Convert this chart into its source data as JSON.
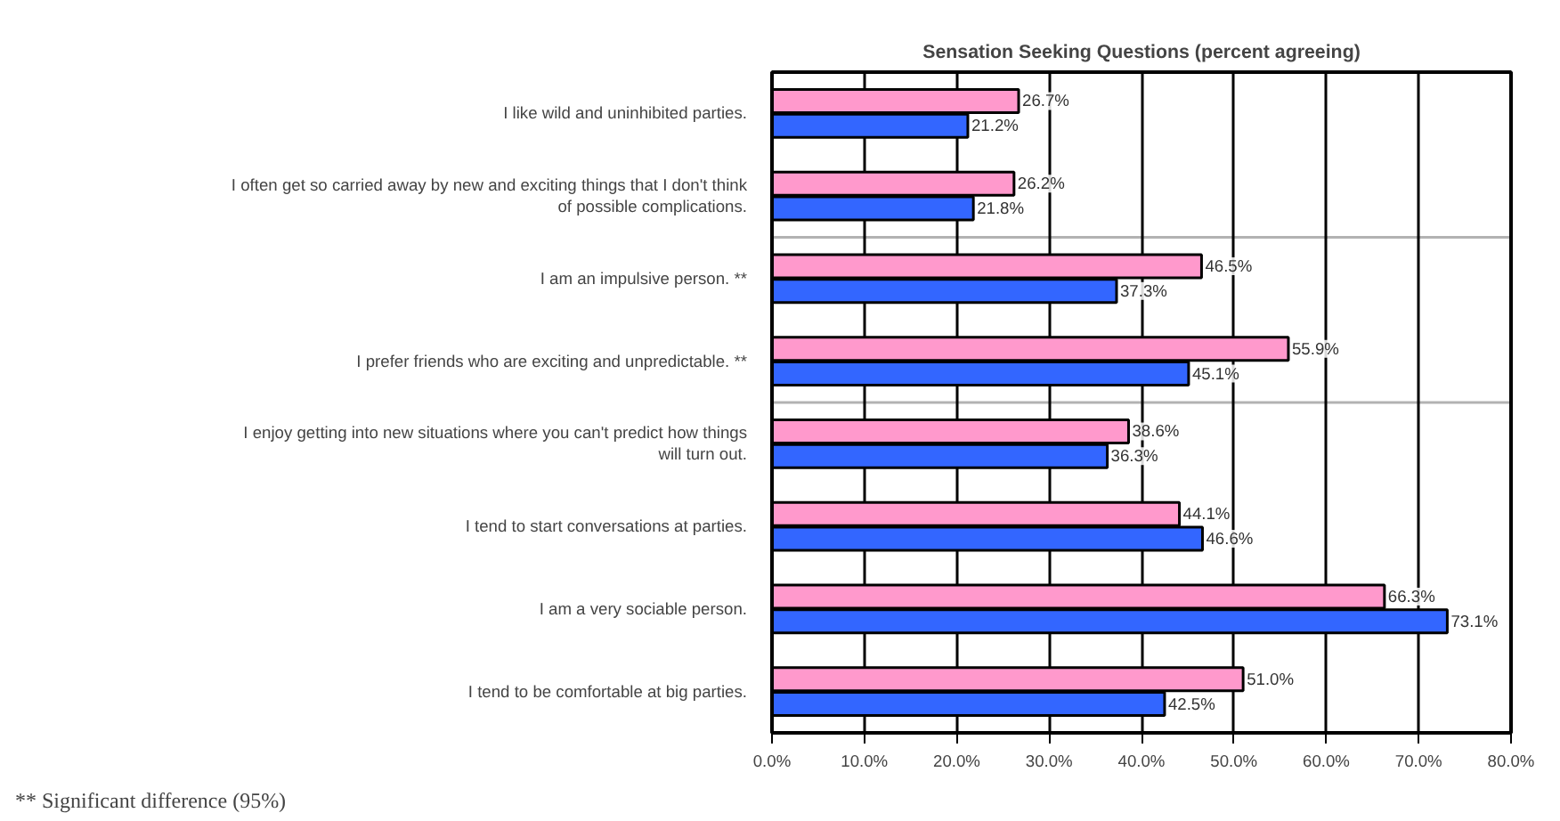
{
  "chart_data": {
    "type": "bar",
    "orientation": "horizontal",
    "title": "Sensation Seeking Questions (percent agreeing)",
    "categories": [
      "I like wild and uninhibited parties.",
      "I often get so carried away by new and exciting things that I don't think of possible complications.",
      "I am an impulsive person. **",
      "I prefer friends who are exciting and unpredictable. **",
      "I enjoy getting into new situations where you can't predict how things will turn out.",
      "I tend to start conversations at parties.",
      "I am a very sociable person.",
      "I tend to be comfortable at big parties."
    ],
    "series": [
      {
        "color": "#ff99cc",
        "values": [
          26.7,
          26.2,
          46.5,
          55.9,
          38.6,
          44.1,
          66.3,
          51.0
        ],
        "value_labels": [
          "26.7%",
          "26.2%",
          "46.5%",
          "55.9%",
          "38.6%",
          "44.1%",
          "66.3%",
          "51.0%"
        ]
      },
      {
        "color": "#3366ff",
        "values": [
          21.2,
          21.8,
          37.3,
          45.1,
          36.3,
          46.6,
          73.1,
          42.5
        ],
        "value_labels": [
          "21.2%",
          "21.8%",
          "37.3%",
          "45.1%",
          "36.3%",
          "46.6%",
          "73.1%",
          "42.5%"
        ]
      }
    ],
    "xlim": [
      0,
      80
    ],
    "xticks": [
      {
        "value": 0,
        "label": "0.0%"
      },
      {
        "value": 10,
        "label": "10.0%"
      },
      {
        "value": 20,
        "label": "20.0%"
      },
      {
        "value": 30,
        "label": "30.0%"
      },
      {
        "value": 40,
        "label": "40.0%"
      },
      {
        "value": 50,
        "label": "50.0%"
      },
      {
        "value": 60,
        "label": "60.0%"
      },
      {
        "value": 70,
        "label": "70.0%"
      },
      {
        "value": 80,
        "label": "80.0%"
      }
    ],
    "grid": "x",
    "annotations": [
      "** Significant difference (95%)"
    ]
  }
}
